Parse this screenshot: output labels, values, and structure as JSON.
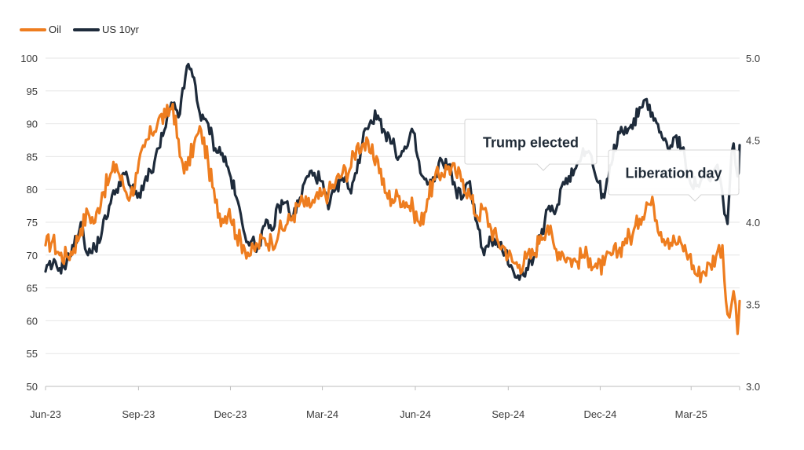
{
  "chart_data": {
    "type": "line",
    "title": "",
    "legend": {
      "position": "top-left"
    },
    "x_ticks": [
      "Jun-23",
      "Sep-23",
      "Dec-23",
      "Mar-24",
      "Jun-24",
      "Sep-24",
      "Dec-24",
      "Mar-25"
    ],
    "x_range": [
      "2023-06-01",
      "2025-04-18"
    ],
    "y_left": {
      "min": 50,
      "max": 100,
      "step": 5,
      "ticks": [
        "50",
        "55",
        "60",
        "65",
        "70",
        "75",
        "80",
        "85",
        "90",
        "95",
        "100"
      ]
    },
    "y_right": {
      "min": 3.0,
      "max": 5.0,
      "ticks": [
        "3.0",
        "3.5",
        "4.0",
        "4.5",
        "5.0"
      ]
    },
    "grid": true,
    "series": [
      {
        "name": "Oil",
        "axis": "left",
        "color": "#EE7D1F",
        "points": [
          [
            "2023-06-01",
            71.5
          ],
          [
            "2023-06-08",
            72.2
          ],
          [
            "2023-06-15",
            70.0
          ],
          [
            "2023-06-22",
            69.8
          ],
          [
            "2023-06-29",
            71.0
          ],
          [
            "2023-07-06",
            74.0
          ],
          [
            "2023-07-13",
            76.5
          ],
          [
            "2023-07-20",
            75.0
          ],
          [
            "2023-07-27",
            79.5
          ],
          [
            "2023-08-03",
            81.5
          ],
          [
            "2023-08-10",
            83.8
          ],
          [
            "2023-08-17",
            80.5
          ],
          [
            "2023-08-24",
            79.0
          ],
          [
            "2023-08-31",
            82.5
          ],
          [
            "2023-09-07",
            86.5
          ],
          [
            "2023-09-14",
            88.5
          ],
          [
            "2023-09-21",
            90.8
          ],
          [
            "2023-09-28",
            91.0
          ],
          [
            "2023-10-05",
            93.0
          ],
          [
            "2023-10-12",
            85.0
          ],
          [
            "2023-10-19",
            83.0
          ],
          [
            "2023-10-26",
            87.0
          ],
          [
            "2023-11-02",
            89.0
          ],
          [
            "2023-11-09",
            84.0
          ],
          [
            "2023-11-16",
            78.0
          ],
          [
            "2023-11-23",
            75.5
          ],
          [
            "2023-11-30",
            77.0
          ],
          [
            "2023-12-07",
            73.0
          ],
          [
            "2023-12-14",
            71.5
          ],
          [
            "2023-12-21",
            70.0
          ],
          [
            "2023-12-28",
            71.5
          ],
          [
            "2024-01-04",
            72.5
          ],
          [
            "2024-01-11",
            72.0
          ],
          [
            "2024-01-18",
            73.5
          ],
          [
            "2024-01-25",
            74.5
          ],
          [
            "2024-02-01",
            76.0
          ],
          [
            "2024-02-08",
            78.0
          ],
          [
            "2024-02-15",
            77.5
          ],
          [
            "2024-02-22",
            78.0
          ],
          [
            "2024-02-29",
            79.0
          ],
          [
            "2024-03-07",
            79.5
          ],
          [
            "2024-03-14",
            81.0
          ],
          [
            "2024-03-21",
            82.5
          ],
          [
            "2024-03-28",
            83.0
          ],
          [
            "2024-04-04",
            86.5
          ],
          [
            "2024-04-11",
            87.0
          ],
          [
            "2024-04-18",
            85.5
          ],
          [
            "2024-04-25",
            84.5
          ],
          [
            "2024-05-02",
            79.5
          ],
          [
            "2024-05-09",
            78.5
          ],
          [
            "2024-05-16",
            79.0
          ],
          [
            "2024-05-23",
            78.0
          ],
          [
            "2024-05-30",
            77.0
          ],
          [
            "2024-06-06",
            74.5
          ],
          [
            "2024-06-13",
            78.5
          ],
          [
            "2024-06-20",
            81.5
          ],
          [
            "2024-06-27",
            82.5
          ],
          [
            "2024-07-04",
            83.5
          ],
          [
            "2024-07-11",
            82.5
          ],
          [
            "2024-07-18",
            81.5
          ],
          [
            "2024-07-25",
            79.0
          ],
          [
            "2024-08-01",
            76.0
          ],
          [
            "2024-08-08",
            77.0
          ],
          [
            "2024-08-15",
            74.0
          ],
          [
            "2024-08-22",
            72.0
          ],
          [
            "2024-08-29",
            71.0
          ],
          [
            "2024-09-05",
            69.0
          ],
          [
            "2024-09-12",
            68.5
          ],
          [
            "2024-09-19",
            69.5
          ],
          [
            "2024-09-26",
            70.0
          ],
          [
            "2024-10-03",
            73.0
          ],
          [
            "2024-10-10",
            74.5
          ],
          [
            "2024-10-17",
            71.0
          ],
          [
            "2024-10-24",
            70.5
          ],
          [
            "2024-10-31",
            69.5
          ],
          [
            "2024-11-07",
            69.0
          ],
          [
            "2024-11-14",
            70.0
          ],
          [
            "2024-11-21",
            69.5
          ],
          [
            "2024-11-28",
            68.0
          ],
          [
            "2024-12-05",
            68.5
          ],
          [
            "2024-12-12",
            70.0
          ],
          [
            "2024-12-19",
            70.5
          ],
          [
            "2024-12-26",
            72.5
          ],
          [
            "2025-01-02",
            73.0
          ],
          [
            "2025-01-09",
            75.5
          ],
          [
            "2025-01-16",
            78.0
          ],
          [
            "2025-01-23",
            77.5
          ],
          [
            "2025-01-30",
            73.5
          ],
          [
            "2025-02-06",
            72.5
          ],
          [
            "2025-02-13",
            72.0
          ],
          [
            "2025-02-20",
            71.5
          ],
          [
            "2025-02-27",
            70.0
          ],
          [
            "2025-03-06",
            67.0
          ],
          [
            "2025-03-13",
            67.5
          ],
          [
            "2025-03-20",
            68.5
          ],
          [
            "2025-03-27",
            70.5
          ],
          [
            "2025-04-01",
            71.5
          ],
          [
            "2025-04-03",
            66.0
          ],
          [
            "2025-04-06",
            61.0
          ],
          [
            "2025-04-08",
            60.5
          ],
          [
            "2025-04-10",
            62.5
          ],
          [
            "2025-04-12",
            64.5
          ],
          [
            "2025-04-14",
            62.5
          ],
          [
            "2025-04-16",
            58.0
          ],
          [
            "2025-04-17",
            60.0
          ],
          [
            "2025-04-18",
            63.0
          ]
        ]
      },
      {
        "name": "US 10yr",
        "axis": "right",
        "color": "#1E2B3B",
        "points": [
          [
            "2023-06-01",
            3.7
          ],
          [
            "2023-06-08",
            3.74
          ],
          [
            "2023-06-15",
            3.72
          ],
          [
            "2023-06-22",
            3.76
          ],
          [
            "2023-06-29",
            3.85
          ],
          [
            "2023-07-06",
            4.0
          ],
          [
            "2023-07-13",
            3.8
          ],
          [
            "2023-07-20",
            3.84
          ],
          [
            "2023-07-27",
            3.95
          ],
          [
            "2023-08-03",
            4.1
          ],
          [
            "2023-08-10",
            4.2
          ],
          [
            "2023-08-17",
            4.3
          ],
          [
            "2023-08-24",
            4.22
          ],
          [
            "2023-08-31",
            4.15
          ],
          [
            "2023-09-07",
            4.25
          ],
          [
            "2023-09-14",
            4.3
          ],
          [
            "2023-09-21",
            4.45
          ],
          [
            "2023-09-28",
            4.58
          ],
          [
            "2023-10-05",
            4.72
          ],
          [
            "2023-10-12",
            4.66
          ],
          [
            "2023-10-19",
            4.95
          ],
          [
            "2023-10-26",
            4.88
          ],
          [
            "2023-11-02",
            4.62
          ],
          [
            "2023-11-09",
            4.6
          ],
          [
            "2023-11-16",
            4.45
          ],
          [
            "2023-11-23",
            4.42
          ],
          [
            "2023-11-30",
            4.3
          ],
          [
            "2023-12-07",
            4.15
          ],
          [
            "2023-12-14",
            3.95
          ],
          [
            "2023-12-21",
            3.88
          ],
          [
            "2023-12-28",
            3.85
          ],
          [
            "2024-01-04",
            3.98
          ],
          [
            "2024-01-11",
            3.95
          ],
          [
            "2024-01-18",
            4.1
          ],
          [
            "2024-01-25",
            4.12
          ],
          [
            "2024-02-01",
            4.03
          ],
          [
            "2024-02-08",
            4.15
          ],
          [
            "2024-02-15",
            4.28
          ],
          [
            "2024-02-22",
            4.3
          ],
          [
            "2024-02-29",
            4.25
          ],
          [
            "2024-03-07",
            4.08
          ],
          [
            "2024-03-14",
            4.2
          ],
          [
            "2024-03-21",
            4.27
          ],
          [
            "2024-03-28",
            4.2
          ],
          [
            "2024-04-04",
            4.3
          ],
          [
            "2024-04-11",
            4.55
          ],
          [
            "2024-04-18",
            4.62
          ],
          [
            "2024-04-25",
            4.65
          ],
          [
            "2024-05-02",
            4.55
          ],
          [
            "2024-05-09",
            4.48
          ],
          [
            "2024-05-16",
            4.4
          ],
          [
            "2024-05-23",
            4.45
          ],
          [
            "2024-05-30",
            4.55
          ],
          [
            "2024-06-06",
            4.3
          ],
          [
            "2024-06-13",
            4.23
          ],
          [
            "2024-06-20",
            4.25
          ],
          [
            "2024-06-27",
            4.38
          ],
          [
            "2024-07-04",
            4.35
          ],
          [
            "2024-07-11",
            4.2
          ],
          [
            "2024-07-18",
            4.15
          ],
          [
            "2024-07-25",
            4.25
          ],
          [
            "2024-08-01",
            4.0
          ],
          [
            "2024-08-08",
            3.8
          ],
          [
            "2024-08-15",
            3.9
          ],
          [
            "2024-08-22",
            3.85
          ],
          [
            "2024-08-29",
            3.82
          ],
          [
            "2024-09-05",
            3.72
          ],
          [
            "2024-09-12",
            3.65
          ],
          [
            "2024-09-19",
            3.72
          ],
          [
            "2024-09-26",
            3.78
          ],
          [
            "2024-10-03",
            3.9
          ],
          [
            "2024-10-10",
            4.08
          ],
          [
            "2024-10-17",
            4.05
          ],
          [
            "2024-10-24",
            4.22
          ],
          [
            "2024-10-31",
            4.28
          ],
          [
            "2024-11-07",
            4.33
          ],
          [
            "2024-11-14",
            4.45
          ],
          [
            "2024-11-21",
            4.42
          ],
          [
            "2024-11-28",
            4.25
          ],
          [
            "2024-12-05",
            4.15
          ],
          [
            "2024-12-12",
            4.35
          ],
          [
            "2024-12-19",
            4.55
          ],
          [
            "2024-12-26",
            4.58
          ],
          [
            "2025-01-02",
            4.57
          ],
          [
            "2025-01-09",
            4.7
          ],
          [
            "2025-01-16",
            4.75
          ],
          [
            "2025-01-23",
            4.62
          ],
          [
            "2025-01-30",
            4.55
          ],
          [
            "2025-02-06",
            4.45
          ],
          [
            "2025-02-13",
            4.52
          ],
          [
            "2025-02-20",
            4.45
          ],
          [
            "2025-02-27",
            4.27
          ],
          [
            "2025-03-06",
            4.22
          ],
          [
            "2025-03-13",
            4.28
          ],
          [
            "2025-03-20",
            4.25
          ],
          [
            "2025-03-27",
            4.35
          ],
          [
            "2025-04-01",
            4.18
          ],
          [
            "2025-04-03",
            4.05
          ],
          [
            "2025-04-06",
            3.99
          ],
          [
            "2025-04-08",
            4.2
          ],
          [
            "2025-04-10",
            4.42
          ],
          [
            "2025-04-12",
            4.48
          ],
          [
            "2025-04-14",
            4.35
          ],
          [
            "2025-04-16",
            4.28
          ],
          [
            "2025-04-17",
            4.3
          ],
          [
            "2025-04-18",
            4.47
          ]
        ]
      }
    ],
    "annotations": [
      {
        "text": "Trump elected",
        "date": "2024-11-06"
      },
      {
        "text": "Liberation day",
        "date": "2025-04-02"
      }
    ]
  }
}
